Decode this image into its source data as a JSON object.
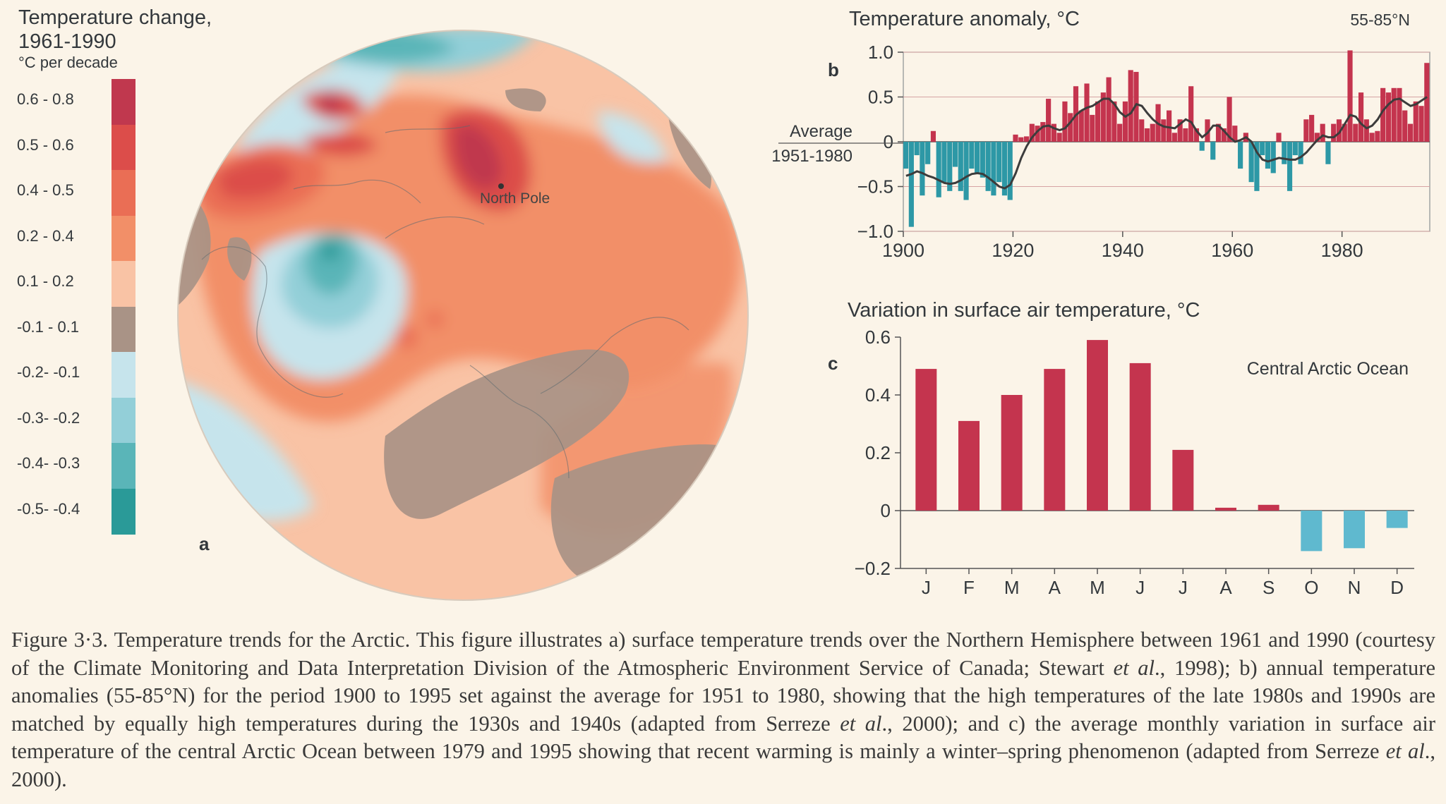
{
  "panel_a": {
    "letter": "a",
    "legend_title_line1": "Temperature change,",
    "legend_title_line2": "1961-1990",
    "legend_unit": "°C per decade",
    "pole_label": "North Pole",
    "bins": [
      {
        "label": "0.6 - 0.8",
        "color": "#c0384e"
      },
      {
        "label": "0.5 - 0.6",
        "color": "#dc4d4a"
      },
      {
        "label": "0.4 - 0.5",
        "color": "#ea6e55"
      },
      {
        "label": "0.2 - 0.4",
        "color": "#f28f68"
      },
      {
        "label": "0.1 - 0.2",
        "color": "#f9c3a5"
      },
      {
        "label": "-0.1 - 0.1",
        "color": "#a99386"
      },
      {
        "label": "-0.2- -0.1",
        "color": "#c6e4ec"
      },
      {
        "label": "-0.3- -0.2",
        "color": "#93cfd8"
      },
      {
        "label": "-0.4- -0.3",
        "color": "#5ab5b8"
      },
      {
        "label": "-0.5- -0.4",
        "color": "#2a9a98"
      }
    ]
  },
  "chart_data": [
    {
      "type": "bar",
      "panel": "b",
      "title": "Temperature anomaly, °C",
      "region_label": "55-85°N",
      "baseline_label_line1": "Average",
      "baseline_label_line2": "1951-1980",
      "x_ticks": [
        "1900",
        "1920",
        "1940",
        "1960",
        "1980"
      ],
      "y_ticks": [
        "1.0",
        "0.5",
        "0",
        "−0.5",
        "−1.0"
      ],
      "ylim": [
        -1.0,
        1.0
      ],
      "xlim": [
        1900,
        1995
      ],
      "positive_color": "#c4344e",
      "negative_color": "#2d98a6",
      "x": [
        1900,
        1901,
        1902,
        1903,
        1904,
        1905,
        1906,
        1907,
        1908,
        1909,
        1910,
        1911,
        1912,
        1913,
        1914,
        1915,
        1916,
        1917,
        1918,
        1919,
        1920,
        1921,
        1922,
        1923,
        1924,
        1925,
        1926,
        1927,
        1928,
        1929,
        1930,
        1931,
        1932,
        1933,
        1934,
        1935,
        1936,
        1937,
        1938,
        1939,
        1940,
        1941,
        1942,
        1943,
        1944,
        1945,
        1946,
        1947,
        1948,
        1949,
        1950,
        1951,
        1952,
        1953,
        1954,
        1955,
        1956,
        1957,
        1958,
        1959,
        1960,
        1961,
        1962,
        1963,
        1964,
        1965,
        1966,
        1967,
        1968,
        1969,
        1970,
        1971,
        1972,
        1973,
        1974,
        1975,
        1976,
        1977,
        1978,
        1979,
        1980,
        1981,
        1982,
        1983,
        1984,
        1985,
        1986,
        1987,
        1988,
        1989,
        1990,
        1991,
        1992,
        1993,
        1994,
        1995
      ],
      "values": [
        -0.3,
        -0.95,
        -0.15,
        -0.6,
        -0.25,
        0.12,
        -0.62,
        -0.45,
        -0.55,
        -0.28,
        -0.55,
        -0.65,
        -0.3,
        -0.35,
        -0.4,
        -0.55,
        -0.6,
        -0.45,
        -0.6,
        -0.65,
        0.08,
        0.05,
        0.06,
        0.2,
        0.18,
        0.22,
        0.48,
        0.2,
        0.1,
        0.45,
        0.32,
        0.62,
        0.35,
        0.65,
        0.3,
        0.45,
        0.55,
        0.72,
        0.45,
        0.2,
        0.45,
        0.8,
        0.78,
        0.25,
        0.15,
        0.2,
        0.42,
        0.25,
        0.35,
        0.1,
        0.25,
        0.15,
        0.62,
        0.15,
        -0.1,
        0.25,
        -0.2,
        0.2,
        0.15,
        0.5,
        0.18,
        -0.3,
        0.1,
        -0.45,
        -0.55,
        -0.15,
        -0.3,
        -0.35,
        0.1,
        -0.25,
        -0.55,
        -0.15,
        -0.25,
        0.25,
        0.3,
        0.1,
        0.2,
        -0.25,
        0.2,
        0.25,
        0.2,
        1.02,
        0.2,
        0.55,
        0.25,
        0.1,
        0.12,
        0.6,
        0.55,
        0.6,
        0.6,
        0.35,
        0.2,
        0.45,
        0.4,
        0.88
      ],
      "smoothed": [
        -0.38,
        -0.36,
        -0.33,
        -0.35,
        -0.38,
        -0.4,
        -0.43,
        -0.46,
        -0.47,
        -0.46,
        -0.43,
        -0.39,
        -0.36,
        -0.35,
        -0.36,
        -0.4,
        -0.45,
        -0.5,
        -0.52,
        -0.48,
        -0.35,
        -0.18,
        -0.05,
        0.05,
        0.12,
        0.17,
        0.18,
        0.15,
        0.13,
        0.15,
        0.22,
        0.3,
        0.35,
        0.38,
        0.4,
        0.44,
        0.48,
        0.48,
        0.42,
        0.33,
        0.28,
        0.32,
        0.42,
        0.4,
        0.32,
        0.25,
        0.2,
        0.17,
        0.16,
        0.15,
        0.2,
        0.25,
        0.22,
        0.12,
        0.05,
        0.1,
        0.18,
        0.18,
        0.12,
        0.05,
        0.0,
        0.02,
        0.05,
        0.0,
        -0.12,
        -0.2,
        -0.22,
        -0.2,
        -0.18,
        -0.19,
        -0.2,
        -0.2,
        -0.17,
        -0.12,
        -0.05,
        0.02,
        0.07,
        0.05,
        0.05,
        0.1,
        0.2,
        0.3,
        0.28,
        0.2,
        0.15,
        0.18,
        0.25,
        0.35,
        0.42,
        0.47,
        0.48,
        0.44,
        0.4,
        0.42,
        0.46,
        0.5
      ]
    },
    {
      "type": "bar",
      "panel": "c",
      "title": "Variation in surface air temperature, °C",
      "annotation": "Central Arctic Ocean",
      "categories": [
        "J",
        "F",
        "M",
        "A",
        "M",
        "J",
        "J",
        "A",
        "S",
        "O",
        "N",
        "D"
      ],
      "values": [
        0.49,
        0.31,
        0.4,
        0.49,
        0.59,
        0.51,
        0.21,
        0.01,
        0.02,
        -0.14,
        -0.13,
        -0.06
      ],
      "y_ticks": [
        "0.6",
        "0.4",
        "0.2",
        "0",
        "−0.2"
      ],
      "ylim": [
        -0.2,
        0.6
      ],
      "positive_color": "#c4344e",
      "negative_color": "#5fb9cf"
    }
  ],
  "caption": {
    "p1": "Figure 3·3. Temperature trends for the Arctic. This figure illustrates a) surface temperature trends over the Northern Hemisphere between 1961 and 1990 (courtesy of the Climate Monitoring and Data Interpretation Division of the Atmospheric Environment Service of Canada; Stewart ",
    "it1": "et al",
    "p2": "., 1998); b) annual temperature anomalies (55-85°N) for the period 1900 to 1995 set against the average for 1951 to 1980, showing that the high temperatures of the late 1980s and 1990s are matched by equally high temperatures during the 1930s and 1940s (adapted from Serreze ",
    "it2": "et al",
    "p3": "., 2000); and c) the average monthly variation in surface air temperature of the central Arctic Ocean between 1979 and 1995 showing that recent warming is mainly a winter–spring phenomenon (adapted from Serreze ",
    "it3": "et al",
    "p4": "., 2000)."
  }
}
